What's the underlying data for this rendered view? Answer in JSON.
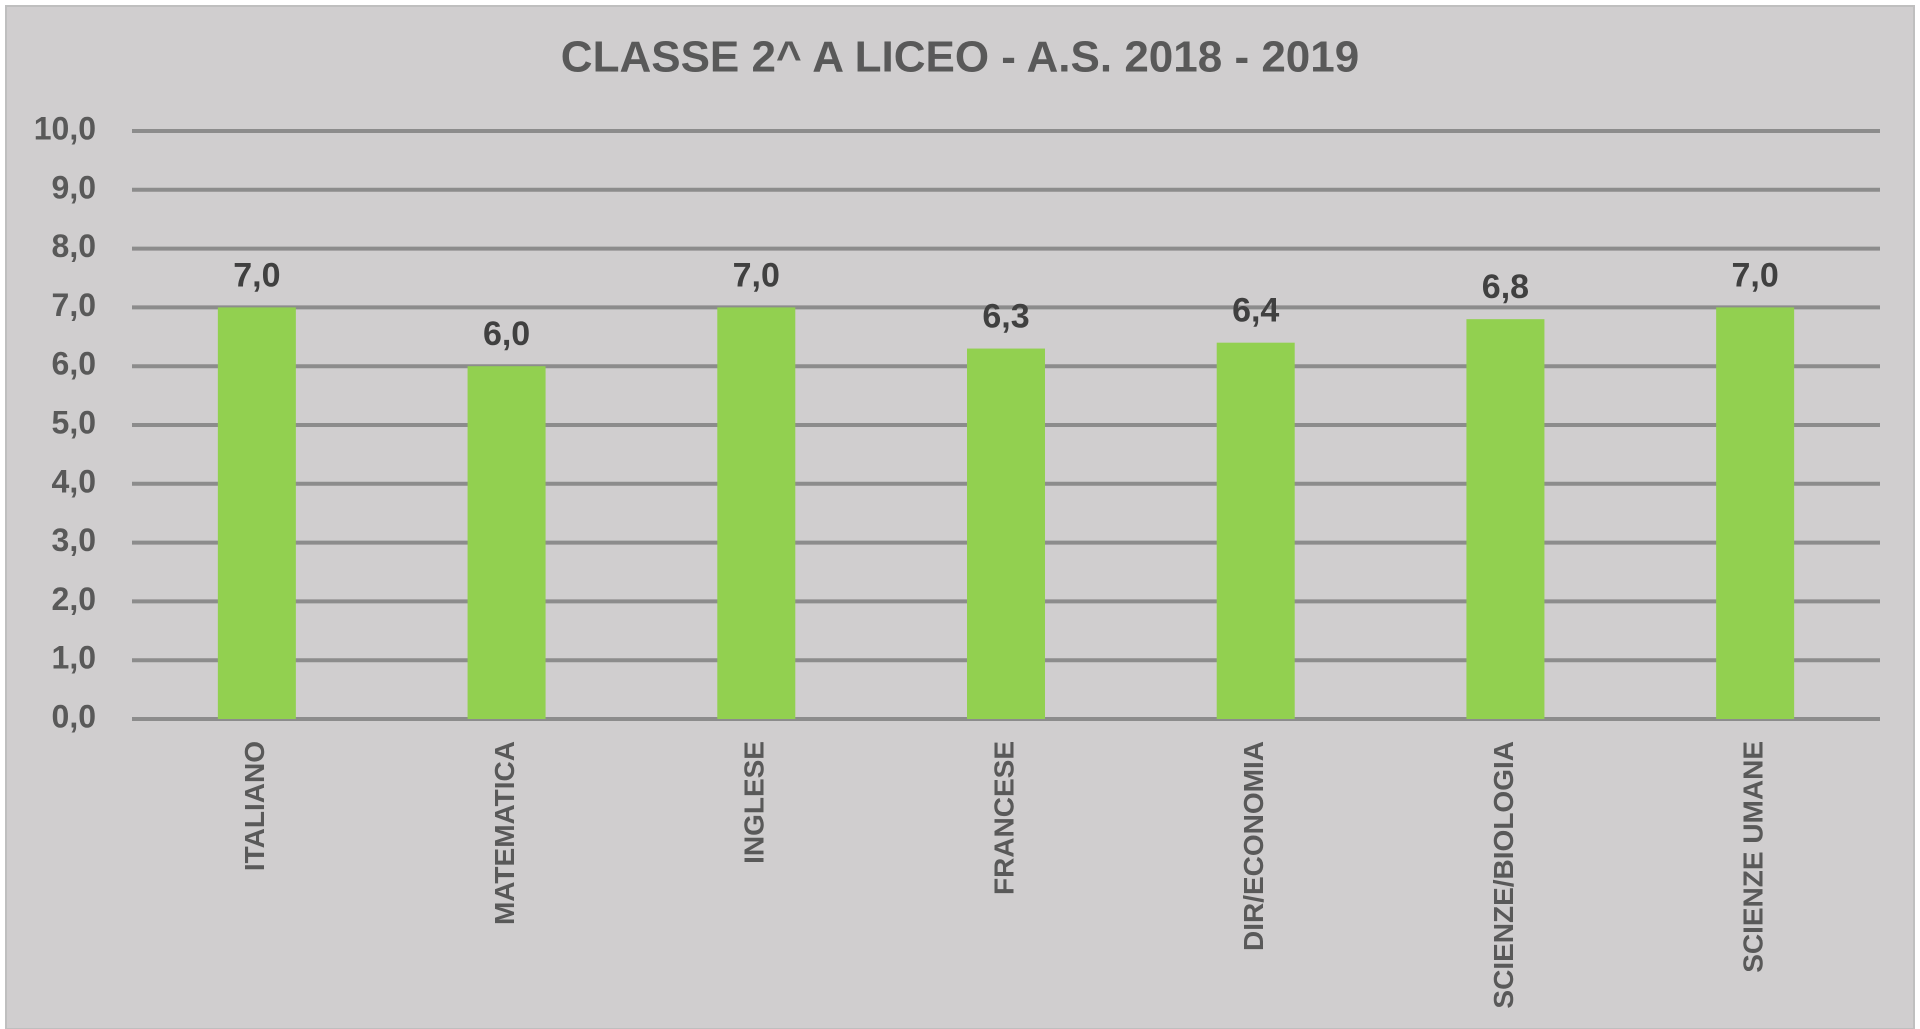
{
  "chart_data": {
    "type": "bar",
    "title": "CLASSE 2^ A  LICEO - A.S. 2018 - 2019",
    "categories": [
      "ITALIANO",
      "MATEMATICA",
      "INGLESE",
      "FRANCESE",
      "DIR/ECONOMIA",
      "SCIENZE/BIOLOGIA",
      "SCIENZE UMANE"
    ],
    "values": [
      7.0,
      6.0,
      7.0,
      6.3,
      6.4,
      6.8,
      7.0
    ],
    "value_labels": [
      "7,0",
      "6,0",
      "7,0",
      "6,3",
      "6,4",
      "6,8",
      "7,0"
    ],
    "color": "#92d050",
    "ylim": [
      0,
      10
    ],
    "yticks": [
      {
        "value": 0,
        "label": "0,0"
      },
      {
        "value": 1,
        "label": "1,0"
      },
      {
        "value": 2,
        "label": "2,0"
      },
      {
        "value": 3,
        "label": "3,0"
      },
      {
        "value": 4,
        "label": "4,0"
      },
      {
        "value": 5,
        "label": "5,0"
      },
      {
        "value": 6,
        "label": "6,0"
      },
      {
        "value": 7,
        "label": "7,0"
      },
      {
        "value": 8,
        "label": "8,0"
      },
      {
        "value": 9,
        "label": "9,0"
      },
      {
        "value": 10,
        "label": "10,0"
      }
    ],
    "grid": true
  }
}
